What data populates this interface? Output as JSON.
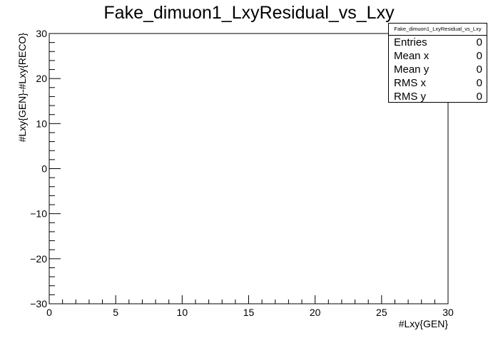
{
  "chart_data": {
    "type": "heatmap",
    "title": "Fake_dimuon1_LxyResidual_vs_Lxy",
    "xlabel": "#Lxy{GEN}",
    "ylabel": "#Lxy{GEN}-#Lxy{RECO}",
    "xlim": [
      0,
      30
    ],
    "ylim": [
      -30,
      30
    ],
    "x_ticks": [
      0,
      5,
      10,
      15,
      20,
      25,
      30
    ],
    "y_ticks": [
      -30,
      -20,
      -10,
      0,
      10,
      20,
      30
    ],
    "values": [],
    "grid": false
  },
  "stats_box": {
    "title": "Fake_dimuon1_LxyResidual_vs_Lxy",
    "rows": [
      {
        "label": "Entries",
        "value": "0"
      },
      {
        "label": "Mean x",
        "value": "0"
      },
      {
        "label": "Mean y",
        "value": "0"
      },
      {
        "label": "RMS x",
        "value": "0"
      },
      {
        "label": "RMS y",
        "value": "0"
      }
    ]
  }
}
